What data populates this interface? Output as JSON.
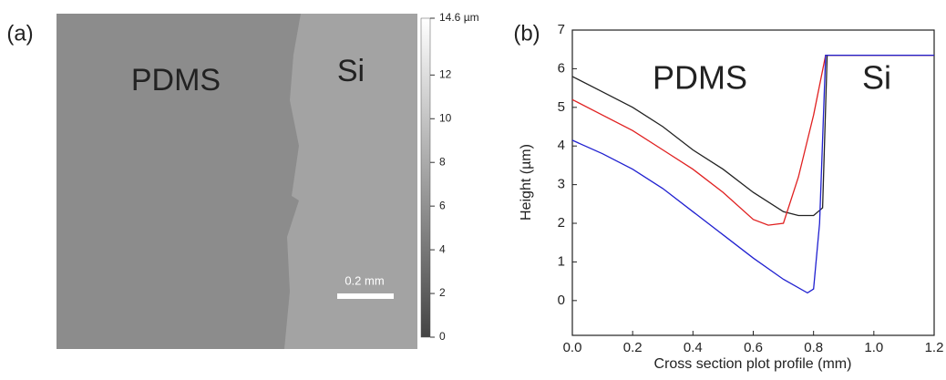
{
  "chart_data": [
    {
      "type": "image",
      "panel_label": "(a)",
      "annotations": [
        "PDMS",
        "Si"
      ],
      "scale_bar_label": "0.2 mm",
      "ylim": [
        0,
        14.6
      ],
      "yticks": [
        0,
        2,
        4,
        6,
        8,
        10,
        12,
        {
          "value": 14.6,
          "label": "14.6 µm"
        }
      ]
    },
    {
      "type": "line",
      "panel_label": "(b)",
      "xlabel": "Cross section plot profile (mm)",
      "ylabel": "Height (µm)",
      "annotations": [
        "PDMS",
        "Si"
      ],
      "xlim": [
        0,
        1.2
      ],
      "ylim": [
        -0.9,
        7
      ],
      "xticks": [
        {
          "value": 0,
          "label": "0.0"
        },
        0.2,
        0.4,
        0.6,
        0.8,
        {
          "value": 1,
          "label": "1.0"
        },
        1.2
      ],
      "yticks": [
        0,
        1,
        2,
        3,
        4,
        5,
        6,
        7
      ],
      "series": [
        {
          "color": "#222222",
          "x": [
            0,
            0.1,
            0.2,
            0.3,
            0.4,
            0.5,
            0.6,
            0.7,
            0.75,
            0.8,
            0.83,
            0.845,
            1.2
          ],
          "values": [
            5.8,
            5.4,
            5.0,
            4.5,
            3.9,
            3.4,
            2.8,
            2.3,
            2.2,
            2.2,
            2.4,
            6.35,
            6.35
          ]
        },
        {
          "color": "#e02020",
          "x": [
            0,
            0.1,
            0.2,
            0.3,
            0.4,
            0.5,
            0.6,
            0.65,
            0.7,
            0.75,
            0.8,
            0.84,
            1.2
          ],
          "values": [
            5.2,
            4.8,
            4.4,
            3.9,
            3.4,
            2.8,
            2.1,
            1.95,
            2.0,
            3.2,
            4.8,
            6.35,
            6.35
          ]
        },
        {
          "color": "#2020d0",
          "x": [
            0,
            0.1,
            0.2,
            0.3,
            0.4,
            0.5,
            0.6,
            0.7,
            0.78,
            0.8,
            0.82,
            0.84,
            1.2
          ],
          "values": [
            4.15,
            3.8,
            3.4,
            2.9,
            2.3,
            1.7,
            1.1,
            0.55,
            0.2,
            0.3,
            2.0,
            6.35,
            6.35
          ]
        }
      ]
    }
  ]
}
